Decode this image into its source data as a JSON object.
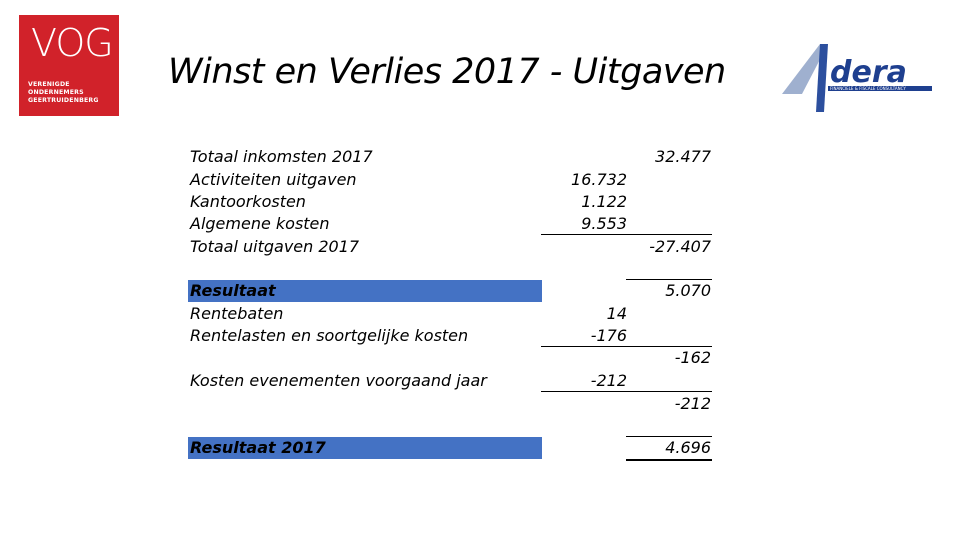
{
  "header": {
    "title": "Winst en Verlies 2017 - Uitgaven"
  },
  "logo_left": {
    "mark": "VOG",
    "lines": [
      "VERENIGDE",
      "ONDERNEMERS",
      "GEERTRUIDENBERG"
    ],
    "color": "#d1222a"
  },
  "logo_right": {
    "mark": "Adera",
    "tagline": "FINANCIELE & FISCALE CONSULTANCY",
    "color": "#1e3f8f"
  },
  "table": {
    "highlight_color": "#4472c4",
    "rows": [
      {
        "label": "Totaal inkomsten 2017",
        "col1": "",
        "col2": "32.477"
      },
      {
        "label": "Activiteiten uitgaven",
        "col1": "16.732",
        "col2": ""
      },
      {
        "label": "Kantoorkosten",
        "col1": "1.122",
        "col2": ""
      },
      {
        "label": "Algemene kosten",
        "col1": "9.553",
        "col2": ""
      },
      {
        "label": "Totaal uitgaven 2017",
        "col1": "",
        "col2": "-27.407"
      },
      {
        "label": "Resultaat",
        "col1": "",
        "col2": "5.070"
      },
      {
        "label": "Rentebaten",
        "col1": "14",
        "col2": ""
      },
      {
        "label": "Rentelasten en soortgelijke kosten",
        "col1": "-176",
        "col2": ""
      },
      {
        "label": "",
        "col1": "",
        "col2": "-162"
      },
      {
        "label": "Kosten evenementen voorgaand jaar",
        "col1": "-212",
        "col2": ""
      },
      {
        "label": "",
        "col1": "",
        "col2": "-212"
      },
      {
        "label": "Resultaat 2017",
        "col1": "",
        "col2": "4.696"
      }
    ]
  }
}
